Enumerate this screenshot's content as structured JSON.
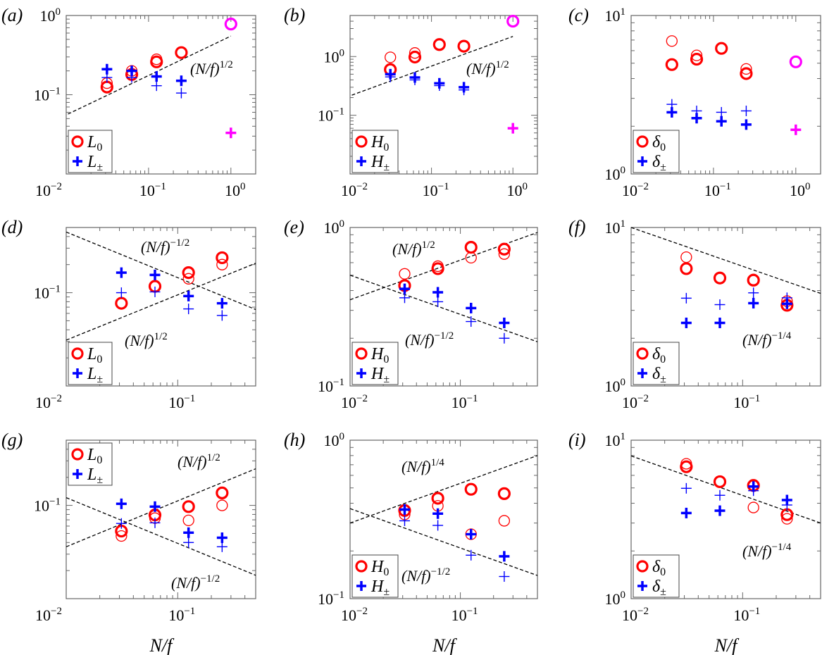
{
  "chart_data": [
    {
      "panel": "(a)",
      "type": "scatter",
      "xscale": "log",
      "yscale": "log",
      "xlim": [
        0.01,
        2
      ],
      "ylim": [
        0.01,
        1
      ],
      "xticks": [
        {
          "base": "10",
          "exp": "−2"
        },
        {
          "base": "10",
          "exp": "−1"
        },
        {
          "base": "10",
          "exp": "0"
        }
      ],
      "xtick_values": [
        0.01,
        0.1,
        1
      ],
      "yticks": [
        {
          "base": "10",
          "exp": "0"
        },
        {
          "base": "10",
          "exp": "−1"
        }
      ],
      "ytick_values": [
        1,
        0.1
      ],
      "xlabel": "",
      "legend_placement": "bottom-left",
      "series": [
        {
          "name": {
            "base": "L",
            "sub": "0"
          },
          "marker": "circle",
          "color": "#ff0000",
          "x": [
            0.03125,
            0.0625,
            0.125,
            0.25
          ],
          "bold": [
            0.125,
            0.18,
            0.26,
            0.34
          ],
          "thin": [
            0.14,
            0.2,
            0.28,
            0.34
          ]
        },
        {
          "name": {
            "base": "L",
            "sub": "±"
          },
          "marker": "plus",
          "color": "#0000ff",
          "x": [
            0.03125,
            0.0625,
            0.125,
            0.25
          ],
          "bold": [
            0.21,
            0.2,
            0.17,
            0.15
          ],
          "thin": [
            0.165,
            0.165,
            0.13,
            0.105
          ]
        },
        {
          "marker": "circle",
          "color": "#ff00ff",
          "x": [
            1
          ],
          "bold": [
            0.78
          ],
          "thin": []
        },
        {
          "marker": "plus",
          "color": "#ff00ff",
          "x": [
            1
          ],
          "bold": [
            0.033
          ],
          "thin": []
        }
      ],
      "lines": [
        {
          "x": [
            0.0105,
            1
          ],
          "y": [
            0.057,
            0.55
          ]
        }
      ],
      "annotations": [
        {
          "base": "(N/f)",
          "exp": "1/2"
        }
      ]
    },
    {
      "panel": "(b)",
      "type": "scatter",
      "xscale": "log",
      "yscale": "log",
      "xlim": [
        0.01,
        2
      ],
      "ylim": [
        0.01,
        5
      ],
      "xticks": [
        {
          "base": "10",
          "exp": "−2"
        },
        {
          "base": "10",
          "exp": "−1"
        },
        {
          "base": "10",
          "exp": "0"
        }
      ],
      "xtick_values": [
        0.01,
        0.1,
        1
      ],
      "yticks": [
        {
          "base": "10",
          "exp": "0"
        },
        {
          "base": "10",
          "exp": "−1"
        }
      ],
      "ytick_values": [
        1,
        0.1
      ],
      "xlabel": "",
      "legend_placement": "bottom-left",
      "series": [
        {
          "name": {
            "base": "H",
            "sub": "0"
          },
          "marker": "circle",
          "color": "#ff0000",
          "x": [
            0.03125,
            0.0625,
            0.125,
            0.25
          ],
          "bold": [
            0.6,
            0.98,
            1.6,
            1.5
          ],
          "thin": [
            0.97,
            1.15,
            1.6,
            1.5
          ]
        },
        {
          "name": {
            "base": "H",
            "sub": "±"
          },
          "marker": "plus",
          "color": "#0000ff",
          "x": [
            0.03125,
            0.0625,
            0.125,
            0.25
          ],
          "bold": [
            0.5,
            0.44,
            0.35,
            0.3
          ],
          "thin": [
            0.45,
            0.4,
            0.32,
            0.27
          ]
        },
        {
          "marker": "circle",
          "color": "#ff00ff",
          "x": [
            1
          ],
          "bold": [
            4.0
          ],
          "thin": []
        },
        {
          "marker": "plus",
          "color": "#ff00ff",
          "x": [
            1
          ],
          "bold": [
            0.06
          ],
          "thin": []
        }
      ],
      "lines": [
        {
          "x": [
            0.0105,
            1
          ],
          "y": [
            0.22,
            2.2
          ]
        }
      ],
      "annotations": [
        {
          "base": "(N/f)",
          "exp": "1/2"
        }
      ]
    },
    {
      "panel": "(c)",
      "type": "scatter",
      "xscale": "log",
      "yscale": "log",
      "xlim": [
        0.01,
        2
      ],
      "ylim": [
        1,
        10
      ],
      "xticks": [
        {
          "base": "10",
          "exp": "−2"
        },
        {
          "base": "10",
          "exp": "−1"
        },
        {
          "base": "10",
          "exp": "0"
        }
      ],
      "xtick_values": [
        0.01,
        0.1,
        1
      ],
      "yticks": [
        {
          "base": "10",
          "exp": "1"
        },
        {
          "base": "10",
          "exp": "0"
        }
      ],
      "ytick_values": [
        10,
        1
      ],
      "xlabel": "",
      "legend_placement": "bottom-left",
      "series": [
        {
          "name": {
            "base": "δ",
            "sub": "0"
          },
          "marker": "circle",
          "color": "#ff0000",
          "x": [
            0.03125,
            0.0625,
            0.125,
            0.25
          ],
          "bold": [
            4.9,
            5.3,
            6.2,
            4.3
          ],
          "thin": [
            6.9,
            5.6,
            6.2,
            4.6
          ]
        },
        {
          "name": {
            "base": "δ",
            "sub": "±"
          },
          "marker": "plus",
          "color": "#0000ff",
          "x": [
            0.03125,
            0.0625,
            0.125,
            0.25
          ],
          "bold": [
            2.45,
            2.25,
            2.15,
            2.05
          ],
          "thin": [
            2.75,
            2.5,
            2.45,
            2.5
          ]
        },
        {
          "marker": "circle",
          "color": "#ff00ff",
          "x": [
            1
          ],
          "bold": [
            5.1
          ],
          "thin": []
        },
        {
          "marker": "plus",
          "color": "#ff00ff",
          "x": [
            1
          ],
          "bold": [
            1.9
          ],
          "thin": []
        }
      ],
      "lines": [],
      "annotations": []
    },
    {
      "panel": "(d)",
      "type": "scatter",
      "xscale": "log",
      "yscale": "log",
      "xlim": [
        0.01,
        0.5
      ],
      "ylim": [
        0.01,
        0.5
      ],
      "xticks": [
        {
          "base": "10",
          "exp": "−2"
        },
        {
          "base": "10",
          "exp": "−1"
        }
      ],
      "xtick_values": [
        0.01,
        0.1
      ],
      "yticks": [
        {
          "base": "10",
          "exp": "−1"
        }
      ],
      "ytick_values": [
        0.1
      ],
      "xlabel": "",
      "legend_placement": "bottom-left",
      "series": [
        {
          "name": {
            "base": "L",
            "sub": "0"
          },
          "marker": "circle",
          "color": "#ff0000",
          "x": [
            0.03125,
            0.0625,
            0.125,
            0.25
          ],
          "bold": [
            0.077,
            0.117,
            0.164,
            0.237
          ],
          "thin": [
            0.077,
            0.117,
            0.141,
            0.2
          ]
        },
        {
          "name": {
            "base": "L",
            "sub": "±"
          },
          "marker": "plus",
          "color": "#0000ff",
          "x": [
            0.03125,
            0.0625,
            0.125,
            0.25
          ],
          "bold": [
            0.164,
            0.155,
            0.092,
            0.077
          ],
          "thin": [
            0.1,
            0.102,
            0.067,
            0.057
          ]
        }
      ],
      "lines": [
        {
          "x": [
            0.01,
            0.5
          ],
          "y": [
            0.447,
            0.066
          ]
        },
        {
          "x": [
            0.01,
            0.5
          ],
          "y": [
            0.031,
            0.207
          ]
        }
      ],
      "annotations": [
        {
          "base": "(N/f)",
          "exp": "−1/2"
        },
        {
          "base": "(N/f)",
          "exp": "1/2"
        }
      ]
    },
    {
      "panel": "(e)",
      "type": "scatter",
      "xscale": "log",
      "yscale": "log",
      "xlim": [
        0.01,
        0.5
      ],
      "ylim": [
        0.1,
        1
      ],
      "xticks": [
        {
          "base": "10",
          "exp": "−2"
        },
        {
          "base": "10",
          "exp": "−1"
        }
      ],
      "xtick_values": [
        0.01,
        0.1
      ],
      "yticks": [
        {
          "base": "10",
          "exp": "0"
        },
        {
          "base": "10",
          "exp": "−1"
        }
      ],
      "ytick_values": [
        1,
        0.1
      ],
      "xlabel": "",
      "legend_placement": "bottom-left",
      "series": [
        {
          "name": {
            "base": "H",
            "sub": "0"
          },
          "marker": "circle",
          "color": "#ff0000",
          "x": [
            0.03125,
            0.0625,
            0.125,
            0.25
          ],
          "bold": [
            0.43,
            0.55,
            0.75,
            0.73
          ],
          "thin": [
            0.51,
            0.57,
            0.645,
            0.68
          ]
        },
        {
          "name": {
            "base": "H",
            "sub": "±"
          },
          "marker": "plus",
          "color": "#0000ff",
          "x": [
            0.03125,
            0.0625,
            0.125,
            0.25
          ],
          "bold": [
            0.41,
            0.39,
            0.31,
            0.25
          ],
          "thin": [
            0.36,
            0.34,
            0.255,
            0.2
          ]
        }
      ],
      "lines": [
        {
          "x": [
            0.01,
            0.5
          ],
          "y": [
            0.35,
            0.93
          ]
        },
        {
          "x": [
            0.01,
            0.5
          ],
          "y": [
            0.5,
            0.19
          ]
        }
      ],
      "annotations": [
        {
          "base": "(N/f)",
          "exp": "1/2"
        },
        {
          "base": "(N/f)",
          "exp": "−1/2"
        }
      ]
    },
    {
      "panel": "(f)",
      "type": "scatter",
      "xscale": "log",
      "yscale": "log",
      "xlim": [
        0.01,
        0.5
      ],
      "ylim": [
        1,
        10
      ],
      "xticks": [
        {
          "base": "10",
          "exp": "−2"
        },
        {
          "base": "10",
          "exp": "−1"
        }
      ],
      "xtick_values": [
        0.01,
        0.1
      ],
      "yticks": [
        {
          "base": "10",
          "exp": "1"
        },
        {
          "base": "10",
          "exp": "0"
        }
      ],
      "ytick_values": [
        10,
        1
      ],
      "xlabel": "",
      "legend_placement": "bottom-left",
      "series": [
        {
          "name": {
            "base": "δ",
            "sub": "0"
          },
          "marker": "circle",
          "color": "#ff0000",
          "x": [
            0.03125,
            0.0625,
            0.125,
            0.25
          ],
          "bold": [
            5.5,
            4.8,
            4.65,
            3.23
          ],
          "thin": [
            6.5,
            4.8,
            4.7,
            3.43
          ]
        },
        {
          "name": {
            "base": "δ",
            "sub": "±"
          },
          "marker": "plus",
          "color": "#0000ff",
          "x": [
            0.03125,
            0.0625,
            0.125,
            0.25
          ],
          "bold": [
            2.5,
            2.5,
            3.33,
            3.3
          ],
          "thin": [
            3.58,
            3.26,
            3.87,
            3.6
          ]
        }
      ],
      "lines": [
        {
          "x": [
            0.01,
            0.5
          ],
          "y": [
            10,
            3.84
          ]
        }
      ],
      "annotations": [
        {
          "base": "(N/f)",
          "exp": "−1/4"
        }
      ]
    },
    {
      "panel": "(g)",
      "type": "scatter",
      "xscale": "log",
      "yscale": "log",
      "xlim": [
        0.01,
        0.5
      ],
      "ylim": [
        0.01,
        0.5
      ],
      "xticks": [
        {
          "base": "10",
          "exp": "−2"
        },
        {
          "base": "10",
          "exp": "−1"
        }
      ],
      "xtick_values": [
        0.01,
        0.1
      ],
      "yticks": [
        {
          "base": "10",
          "exp": "−1"
        }
      ],
      "ytick_values": [
        0.1
      ],
      "xlabel": "N/f",
      "legend_placement": "top-left",
      "series": [
        {
          "name": {
            "base": "L",
            "sub": "0"
          },
          "marker": "circle",
          "color": "#ff0000",
          "x": [
            0.03125,
            0.0625,
            0.125,
            0.25
          ],
          "bold": [
            0.053,
            0.079,
            0.097,
            0.136
          ],
          "thin": [
            0.047,
            0.073,
            0.069,
            0.1
          ]
        },
        {
          "name": {
            "base": "L",
            "sub": "±"
          },
          "marker": "plus",
          "color": "#0000ff",
          "x": [
            0.03125,
            0.0625,
            0.125,
            0.25
          ],
          "bold": [
            0.104,
            0.097,
            0.051,
            0.045
          ],
          "thin": [
            0.064,
            0.065,
            0.04,
            0.036
          ]
        }
      ],
      "lines": [
        {
          "x": [
            0.01,
            0.5
          ],
          "y": [
            0.036,
            0.247
          ]
        },
        {
          "x": [
            0.01,
            0.5
          ],
          "y": [
            0.121,
            0.0178
          ]
        }
      ],
      "annotations": [
        {
          "base": "(N/f)",
          "exp": "1/2"
        },
        {
          "base": "(N/f)",
          "exp": "−1/2"
        }
      ]
    },
    {
      "panel": "(h)",
      "type": "scatter",
      "xscale": "log",
      "yscale": "log",
      "xlim": [
        0.01,
        0.5
      ],
      "ylim": [
        0.1,
        1
      ],
      "xticks": [
        {
          "base": "10",
          "exp": "−2"
        },
        {
          "base": "10",
          "exp": "−1"
        }
      ],
      "xtick_values": [
        0.01,
        0.1
      ],
      "yticks": [
        {
          "base": "10",
          "exp": "0"
        },
        {
          "base": "10",
          "exp": "−1"
        }
      ],
      "ytick_values": [
        1,
        0.1
      ],
      "xlabel": "N/f",
      "legend_placement": "bottom-left",
      "series": [
        {
          "name": {
            "base": "H",
            "sub": "0"
          },
          "marker": "circle",
          "color": "#ff0000",
          "x": [
            0.03125,
            0.0625,
            0.125,
            0.25
          ],
          "bold": [
            0.36,
            0.43,
            0.49,
            0.46
          ],
          "thin": [
            0.34,
            0.385,
            0.255,
            0.31
          ]
        },
        {
          "name": {
            "base": "H",
            "sub": "±"
          },
          "marker": "plus",
          "color": "#0000ff",
          "x": [
            0.03125,
            0.0625,
            0.125,
            0.25
          ],
          "bold": [
            0.365,
            0.344,
            0.255,
            0.185
          ],
          "thin": [
            0.31,
            0.29,
            0.188,
            0.138
          ]
        }
      ],
      "lines": [
        {
          "x": [
            0.01,
            0.5
          ],
          "y": [
            0.3,
            0.8
          ]
        },
        {
          "x": [
            0.01,
            0.5
          ],
          "y": [
            0.37,
            0.14
          ]
        }
      ],
      "annotations": [
        {
          "base": "(N/f)",
          "exp": "1/4"
        },
        {
          "base": "(N/f)",
          "exp": "−1/2"
        }
      ]
    },
    {
      "panel": "(i)",
      "type": "scatter",
      "xscale": "log",
      "yscale": "log",
      "xlim": [
        0.01,
        0.5
      ],
      "ylim": [
        1,
        10
      ],
      "xticks": [
        {
          "base": "10",
          "exp": "−2"
        },
        {
          "base": "10",
          "exp": "−1"
        }
      ],
      "xtick_values": [
        0.01,
        0.1
      ],
      "yticks": [
        {
          "base": "10",
          "exp": "1"
        },
        {
          "base": "10",
          "exp": "0"
        }
      ],
      "ytick_values": [
        10,
        1
      ],
      "xlabel": "N/f",
      "legend_placement": "bottom-left",
      "series": [
        {
          "name": {
            "base": "δ",
            "sub": "0"
          },
          "marker": "circle",
          "color": "#ff0000",
          "x": [
            0.03125,
            0.0625,
            0.125,
            0.25
          ],
          "bold": [
            6.8,
            5.47,
            5.18,
            3.39
          ],
          "thin": [
            7.1,
            5.47,
            3.76,
            3.19
          ]
        },
        {
          "name": {
            "base": "δ",
            "sub": "±"
          },
          "marker": "plus",
          "color": "#0000ff",
          "x": [
            0.03125,
            0.0625,
            0.125,
            0.25
          ],
          "bold": [
            3.47,
            3.59,
            5.1,
            4.19
          ],
          "thin": [
            4.97,
            4.49,
            4.8,
            3.9
          ]
        }
      ],
      "lines": [
        {
          "x": [
            0.01,
            0.5
          ],
          "y": [
            7.96,
            3.0
          ]
        }
      ],
      "annotations": [
        {
          "base": "(N/f)",
          "exp": "−1/4"
        }
      ]
    }
  ]
}
